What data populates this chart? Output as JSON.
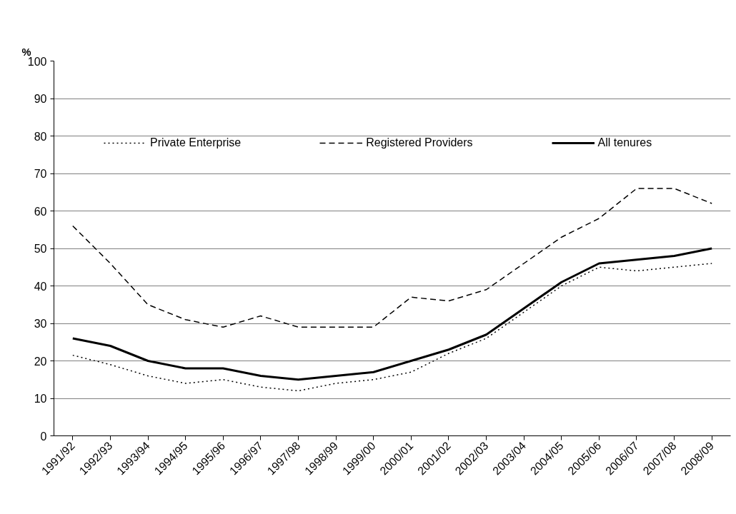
{
  "chart_data": {
    "type": "line",
    "ylabel": "%",
    "categories": [
      "1991/92",
      "1992/93",
      "1993/94",
      "1994/95",
      "1995/96",
      "1996/97",
      "1997/98",
      "1998/99",
      "1999/00",
      "2000/01",
      "2001/02",
      "2002/03",
      "2003/04",
      "2004/05",
      "2005/06",
      "2006/07",
      "2007/08",
      "2008/09"
    ],
    "series": [
      {
        "name": "Private Enterprise",
        "color": "#000000",
        "line_style": "dotted",
        "values": [
          21.5,
          19,
          16,
          14,
          15,
          13,
          12,
          14,
          15,
          17,
          22,
          26,
          33,
          40,
          45,
          44,
          45,
          46
        ]
      },
      {
        "name": "Registered Providers",
        "color": "#000000",
        "line_style": "dashed",
        "values": [
          56,
          46,
          35,
          31,
          29,
          32,
          29,
          29,
          29,
          37,
          36,
          39,
          46,
          53,
          58,
          66,
          66,
          62
        ]
      },
      {
        "name": "All tenures",
        "color": "#000000",
        "line_style": "solid",
        "values": [
          26,
          24,
          20,
          18,
          18,
          16,
          15,
          16,
          17,
          20,
          23,
          27,
          34,
          41,
          46,
          47,
          48,
          50
        ]
      }
    ],
    "ylim": [
      0,
      100
    ],
    "yticks": [
      0,
      10,
      20,
      30,
      40,
      50,
      60,
      70,
      80,
      90,
      100
    ],
    "grid": "y",
    "legend": "top",
    "marker": "none"
  }
}
